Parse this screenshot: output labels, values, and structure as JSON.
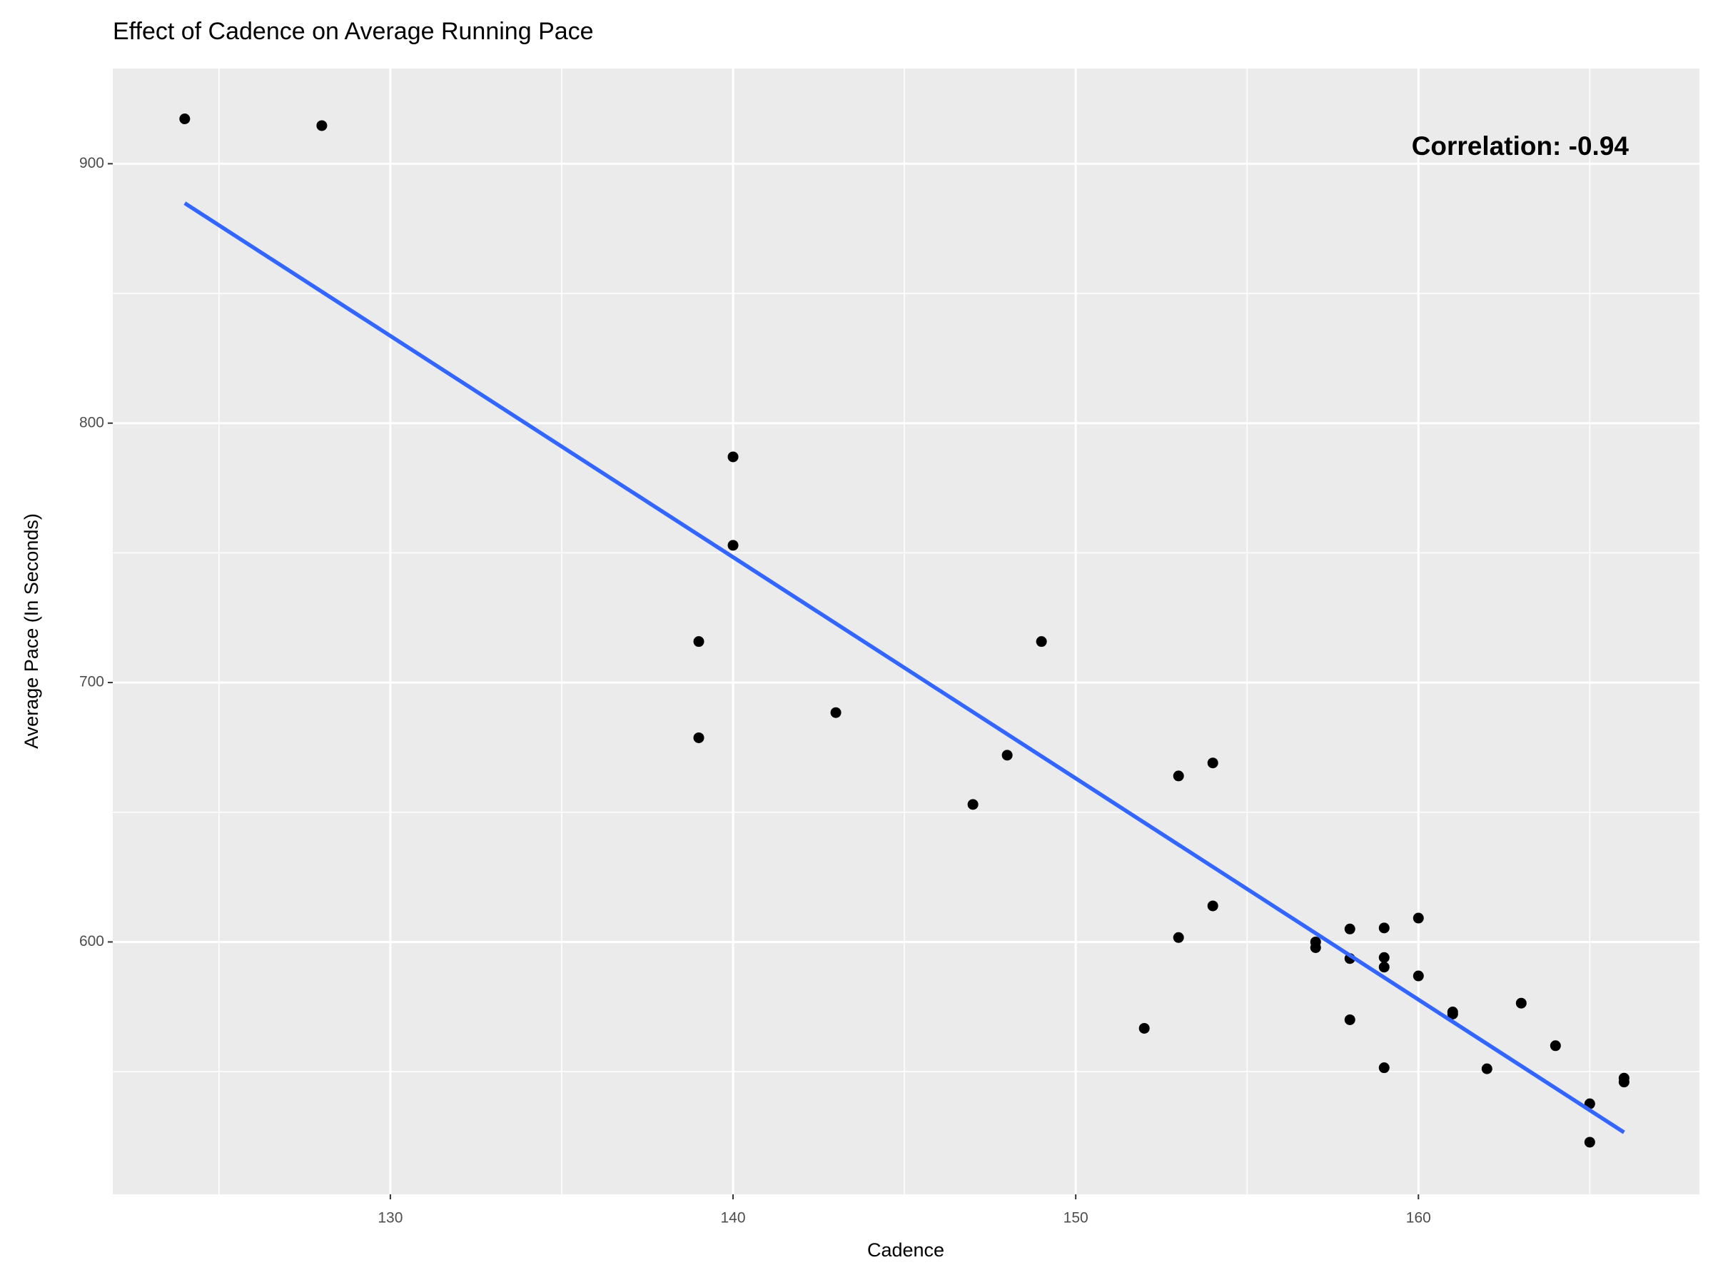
{
  "chart_data": {
    "type": "scatter",
    "title": "Effect of Cadence on Average Running Pace",
    "x_label": "Cadence",
    "y_label": "Average Pace (In Seconds)",
    "annotation": "Correlation: -0.94",
    "series": [
      {
        "color": "#000000",
        "x": [
          124,
          128,
          140,
          140,
          139,
          139,
          143,
          149,
          148,
          147,
          153,
          154,
          154,
          153,
          152,
          157,
          157,
          158,
          158,
          158,
          159,
          159,
          159,
          159,
          160,
          160,
          161,
          161,
          162,
          163,
          164,
          165,
          165,
          166,
          166
        ],
        "values": [
          917.3,
          914.7,
          787,
          752.9,
          715.8,
          678.7,
          688.4,
          715.8,
          672,
          653,
          664,
          669,
          613.9,
          601.7,
          566.7,
          600,
          597.8,
          605,
          593.6,
          570,
          605.4,
          594,
          590.3,
          551.5,
          609.2,
          586.9,
          573,
          572.2,
          551.1,
          576.4,
          560,
          537.6,
          522.8,
          547.5,
          546
        ]
      }
    ],
    "trend_line": {
      "color": "#3366ff",
      "x": [
        124,
        166
      ],
      "values": [
        884.8,
        526.6
      ]
    },
    "xlim": [
      121.9,
      168.2
    ],
    "xticks": [
      130,
      140,
      150,
      160
    ],
    "xminor": [
      125,
      135,
      145,
      155,
      165
    ],
    "ylim": [
      502.7,
      936.7
    ],
    "yticks": [
      600,
      700,
      800,
      900
    ],
    "yminor": [
      550,
      650,
      750,
      850
    ],
    "grid": true,
    "panel_color": "#ebebeb"
  }
}
